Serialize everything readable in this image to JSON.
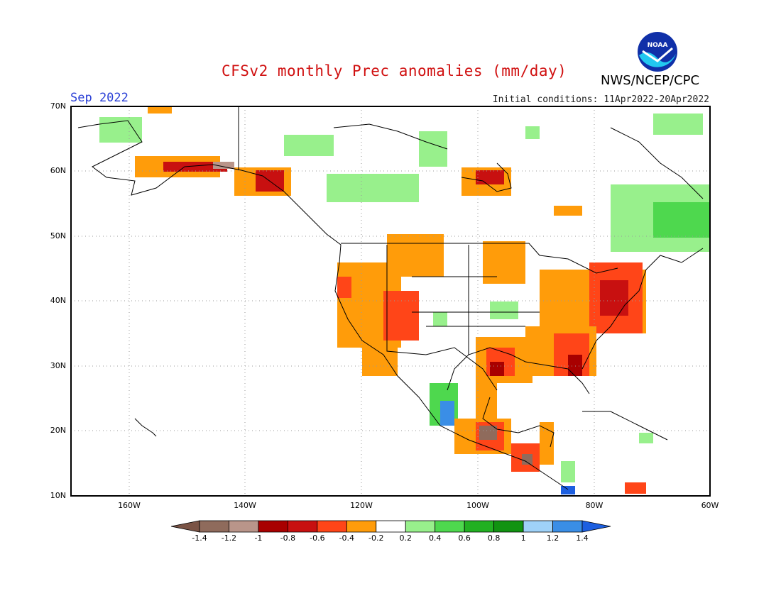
{
  "header": {
    "title": "CFSv2 monthly Prec anomalies (mm/day)",
    "agency": "NWS/NCEP/CPC",
    "logo_text": "NOAA",
    "valid_month": "Sep 2022",
    "initial_conditions": "Initial conditions: 11Apr2022-20Apr2022"
  },
  "axes": {
    "lat_labels": [
      "70N",
      "60N",
      "50N",
      "40N",
      "30N",
      "20N",
      "10N"
    ],
    "lon_labels": [
      "160W",
      "140W",
      "120W",
      "100W",
      "80W",
      "60W"
    ]
  },
  "colorbar": {
    "ticks": [
      "-1.4",
      "-1.2",
      "-1",
      "-0.8",
      "-0.6",
      "-0.4",
      "-0.2",
      "0.2",
      "0.4",
      "0.6",
      "0.8",
      "1",
      "1.2",
      "1.4"
    ],
    "colors": [
      "#7a5345",
      "#8f6b5c",
      "#b9958a",
      "#a80000",
      "#c81010",
      "#ff4518",
      "#ff9c0a",
      "#ffffff",
      "#98f08c",
      "#4ed84e",
      "#22b022",
      "#119311",
      "#9fd2f8",
      "#3a8ee6",
      "#1d5fe0"
    ]
  },
  "colors": {
    "title": "#d01010",
    "month": "#2a3fd6",
    "frame": "#000000"
  }
}
